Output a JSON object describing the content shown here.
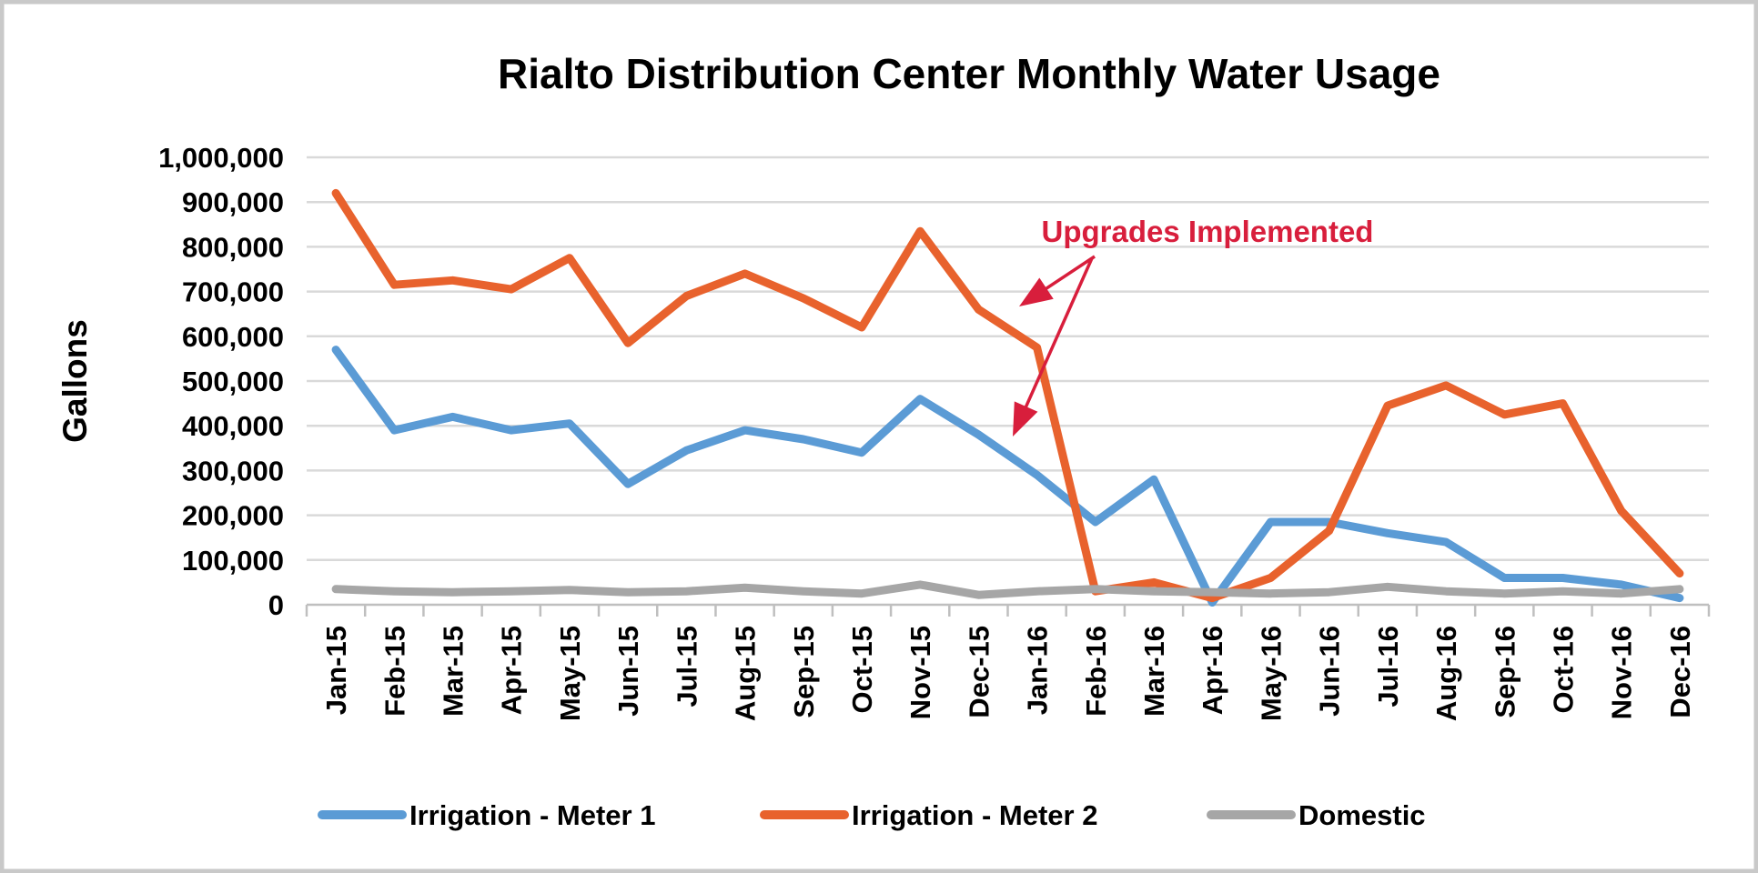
{
  "frame": {
    "border_color": "#C9C9C9",
    "background": "#FFFFFF",
    "grid_color": "#D9D9D9",
    "axis_color": "#BFBFBF",
    "text_color": "#000000"
  },
  "chart_data": {
    "type": "line",
    "title": "Rialto Distribution Center Monthly Water Usage",
    "xlabel": "",
    "ylabel": "Gallons",
    "ylim": [
      0,
      1000000
    ],
    "ytick_step": 100000,
    "grid": true,
    "legend_position": "bottom",
    "categories": [
      "Jan-15",
      "Feb-15",
      "Mar-15",
      "Apr-15",
      "May-15",
      "Jun-15",
      "Jul-15",
      "Aug-15",
      "Sep-15",
      "Oct-15",
      "Nov-15",
      "Dec-15",
      "Jan-16",
      "Feb-16",
      "Mar-16",
      "Apr-16",
      "May-16",
      "Jun-16",
      "Jul-16",
      "Aug-16",
      "Sep-16",
      "Oct-16",
      "Nov-16",
      "Dec-16"
    ],
    "series": [
      {
        "name": "Irrigation - Meter 1",
        "color": "#5B9BD5",
        "values": [
          570000,
          390000,
          420000,
          390000,
          405000,
          270000,
          345000,
          390000,
          370000,
          340000,
          460000,
          380000,
          290000,
          185000,
          280000,
          5000,
          185000,
          185000,
          160000,
          140000,
          60000,
          60000,
          45000,
          15000
        ]
      },
      {
        "name": "Irrigation - Meter 2",
        "color": "#E8622D",
        "values": [
          920000,
          715000,
          725000,
          705000,
          775000,
          585000,
          690000,
          740000,
          685000,
          620000,
          835000,
          660000,
          575000,
          30000,
          50000,
          15000,
          60000,
          165000,
          445000,
          490000,
          425000,
          450000,
          210000,
          70000
        ]
      },
      {
        "name": "Domestic",
        "color": "#A6A6A6",
        "values": [
          35000,
          30000,
          28000,
          30000,
          33000,
          28000,
          30000,
          38000,
          30000,
          25000,
          45000,
          22000,
          30000,
          35000,
          30000,
          28000,
          25000,
          28000,
          40000,
          30000,
          25000,
          30000,
          25000,
          35000
        ]
      }
    ],
    "annotation": {
      "text": "Upgrades Implemented",
      "color": "#D81E3C",
      "text_x": 1327,
      "text_y": 266,
      "arrows": [
        {
          "from": [
            1203,
            282
          ],
          "to": [
            1120,
            337
          ]
        },
        {
          "from": [
            1200,
            284
          ],
          "to": [
            1113,
            480
          ]
        }
      ]
    }
  }
}
